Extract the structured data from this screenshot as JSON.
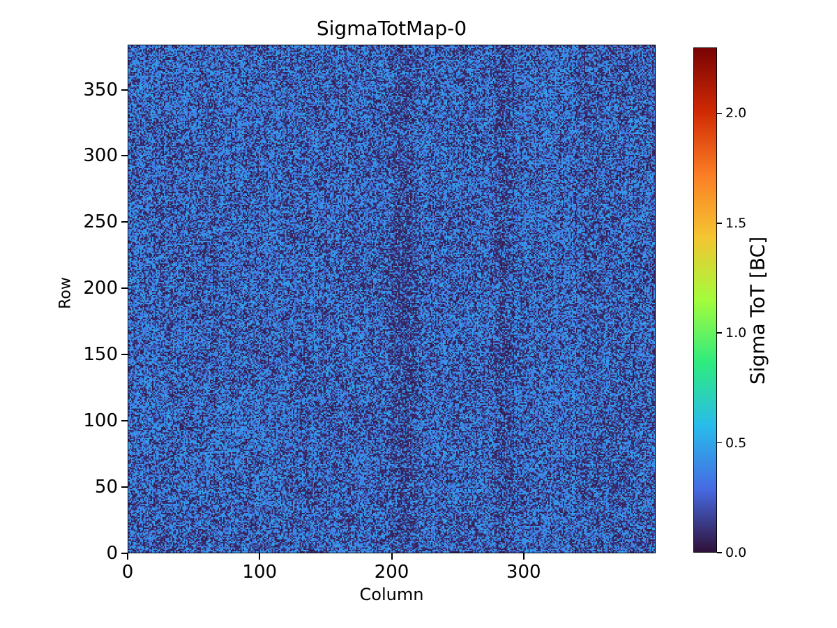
{
  "chart_data": {
    "type": "heatmap",
    "title": "SigmaTotMap-0",
    "xlabel": "Column",
    "ylabel": "Row",
    "colorbar_label": "Sigma ToT [BC]",
    "colormap": "turbo",
    "grid": {
      "columns": 400,
      "rows": 384
    },
    "xlim": [
      0,
      400
    ],
    "ylim": [
      0,
      384
    ],
    "vmin": 0.0,
    "vmax": 2.3,
    "xticks": [
      0,
      100,
      200,
      300
    ],
    "yticks": [
      0,
      50,
      100,
      150,
      200,
      250,
      300,
      350
    ],
    "colorbar_ticks": [
      "0.0",
      "0.5",
      "1.0",
      "1.5",
      "2.0"
    ],
    "legend": "none",
    "grid_lines": false,
    "data_description": "Per-pixel sigma-ToT noise map of a 400x384 pixel matrix. Values form a random speckle: roughly 44% of pixels are dark (sigma ToT about 0.02-0.13 BC, near-black navy) and the rest medium blue (about 0.28-0.52 BC). Faint darker vertical bands appear around columns 200-218 and 278-292, with the rightmost region (columns > 340) slightly darker on average; no values approach the colorbar maximum of about 2.3 BC.",
    "noise_model": {
      "dark_fraction": 0.44,
      "dark_value_range": [
        0.02,
        0.13
      ],
      "bright_value_range": [
        0.28,
        0.52
      ],
      "dark_band_columns": [
        [
          200,
          218
        ],
        [
          278,
          292
        ]
      ],
      "band_boost": 0.16,
      "right_region_start": 340,
      "right_region_boost": 0.05,
      "column_jitter": 0.07,
      "patch_amplitude": 0.07
    }
  }
}
